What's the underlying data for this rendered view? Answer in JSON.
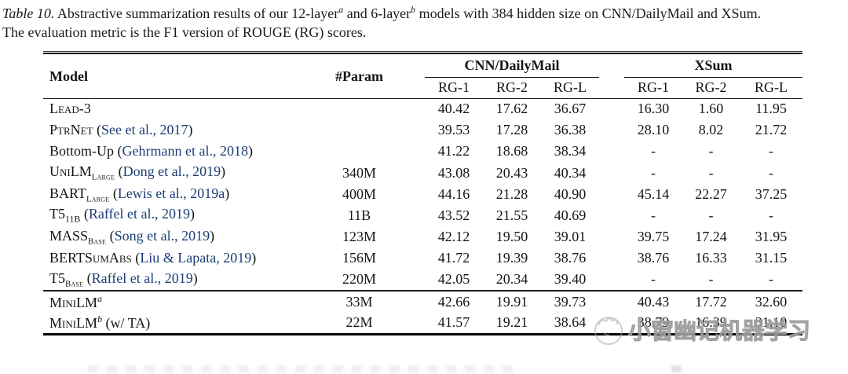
{
  "caption": {
    "line1_parts": [
      {
        "text": "Table 10.",
        "style": "italic"
      },
      {
        "text": "  Abstractive summarization results of our 12-layer",
        "style": "normal"
      },
      {
        "text": "a",
        "style": "sup"
      },
      {
        "text": " and 6-layer",
        "style": "normal"
      },
      {
        "text": "b",
        "style": "sup"
      },
      {
        "text": " models with 384 hidden size on CNN/DailyMail and XSum.",
        "style": "normal"
      }
    ],
    "line2": "The evaluation metric is the F1 version of ROUGE (RG) scores."
  },
  "table": {
    "headers": {
      "model": "Model",
      "param": "#Param",
      "group1": "CNN/DailyMail",
      "group2": "XSum",
      "sub": [
        "RG-1",
        "RG-2",
        "RG-L",
        "RG-1",
        "RG-2",
        "RG-L"
      ]
    },
    "baseline_rows": [
      {
        "model_parts": [
          {
            "text": "Lead-3",
            "style": "sc"
          }
        ],
        "param": "",
        "values": [
          "40.42",
          "17.62",
          "36.67",
          "16.30",
          "1.60",
          "11.95"
        ]
      },
      {
        "model_parts": [
          {
            "text": "PtrNet",
            "style": "sc"
          },
          {
            "text": " (",
            "style": "normal"
          },
          {
            "text": "See et al., 2017",
            "style": "cite"
          },
          {
            "text": ")",
            "style": "normal"
          }
        ],
        "param": "",
        "values": [
          "39.53",
          "17.28",
          "36.38",
          "28.10",
          "8.02",
          "21.72"
        ]
      },
      {
        "model_parts": [
          {
            "text": "Bottom-Up (",
            "style": "normal"
          },
          {
            "text": "Gehrmann et al., 2018",
            "style": "cite"
          },
          {
            "text": ")",
            "style": "normal"
          }
        ],
        "param": "",
        "values": [
          "41.22",
          "18.68",
          "38.34",
          "-",
          "-",
          "-"
        ]
      },
      {
        "model_parts": [
          {
            "text": "UniLM",
            "style": "sc"
          },
          {
            "text": "Large",
            "style": "subsc"
          },
          {
            "text": " (",
            "style": "normal"
          },
          {
            "text": "Dong et al., 2019",
            "style": "cite"
          },
          {
            "text": ")",
            "style": "normal"
          }
        ],
        "param": "340M",
        "values": [
          "43.08",
          "20.43",
          "40.34",
          "-",
          "-",
          "-"
        ]
      },
      {
        "model_parts": [
          {
            "text": "BART",
            "style": "normal"
          },
          {
            "text": "Large",
            "style": "subsc"
          },
          {
            "text": " (",
            "style": "normal"
          },
          {
            "text": "Lewis et al., 2019a",
            "style": "cite"
          },
          {
            "text": ")",
            "style": "normal"
          }
        ],
        "param": "400M",
        "values": [
          "44.16",
          "21.28",
          "40.90",
          "45.14",
          "22.27",
          "37.25"
        ]
      },
      {
        "model_parts": [
          {
            "text": "T5",
            "style": "normal"
          },
          {
            "text": "11B",
            "style": "sub"
          },
          {
            "text": " (",
            "style": "normal"
          },
          {
            "text": "Raffel et al., 2019",
            "style": "cite"
          },
          {
            "text": ")",
            "style": "normal"
          }
        ],
        "param": "11B",
        "values": [
          "43.52",
          "21.55",
          "40.69",
          "-",
          "-",
          "-"
        ]
      },
      {
        "model_parts": [
          {
            "text": "MASS",
            "style": "normal"
          },
          {
            "text": "Base",
            "style": "subsc"
          },
          {
            "text": " (",
            "style": "normal"
          },
          {
            "text": "Song et al., 2019",
            "style": "cite"
          },
          {
            "text": ")",
            "style": "normal"
          }
        ],
        "param": "123M",
        "values": [
          "42.12",
          "19.50",
          "39.01",
          "39.75",
          "17.24",
          "31.95"
        ]
      },
      {
        "model_parts": [
          {
            "text": "BERTSumAbs",
            "style": "sc"
          },
          {
            "text": " (",
            "style": "normal"
          },
          {
            "text": "Liu & Lapata, 2019",
            "style": "cite"
          },
          {
            "text": ")",
            "style": "normal"
          }
        ],
        "param": "156M",
        "values": [
          "41.72",
          "19.39",
          "38.76",
          "38.76",
          "16.33",
          "31.15"
        ]
      },
      {
        "model_parts": [
          {
            "text": "T5",
            "style": "normal"
          },
          {
            "text": "Base",
            "style": "subsc"
          },
          {
            "text": " (",
            "style": "normal"
          },
          {
            "text": "Raffel et al., 2019",
            "style": "cite"
          },
          {
            "text": ")",
            "style": "normal"
          }
        ],
        "param": "220M",
        "values": [
          "42.05",
          "20.34",
          "39.40",
          "-",
          "-",
          "-"
        ]
      }
    ],
    "minilm_rows": [
      {
        "model_parts": [
          {
            "text": "MiniLM",
            "style": "sc"
          },
          {
            "text": "a",
            "style": "sup"
          }
        ],
        "param": "33M",
        "values": [
          "42.66",
          "19.91",
          "39.73",
          "40.43",
          "17.72",
          "32.60"
        ]
      },
      {
        "model_parts": [
          {
            "text": "MiniLM",
            "style": "sc"
          },
          {
            "text": "b",
            "style": "sup"
          },
          {
            "text": " (w/ TA)",
            "style": "normal"
          }
        ],
        "param": "22M",
        "values": [
          "41.57",
          "19.21",
          "38.64",
          "38.79",
          "16.39",
          "31.10"
        ]
      }
    ]
  },
  "watermark": {
    "text": "小窗幽记机器学习"
  },
  "colors": {
    "citation": "#1c3e76",
    "text": "#151515",
    "watermark_gray": "#b6b6b6"
  }
}
